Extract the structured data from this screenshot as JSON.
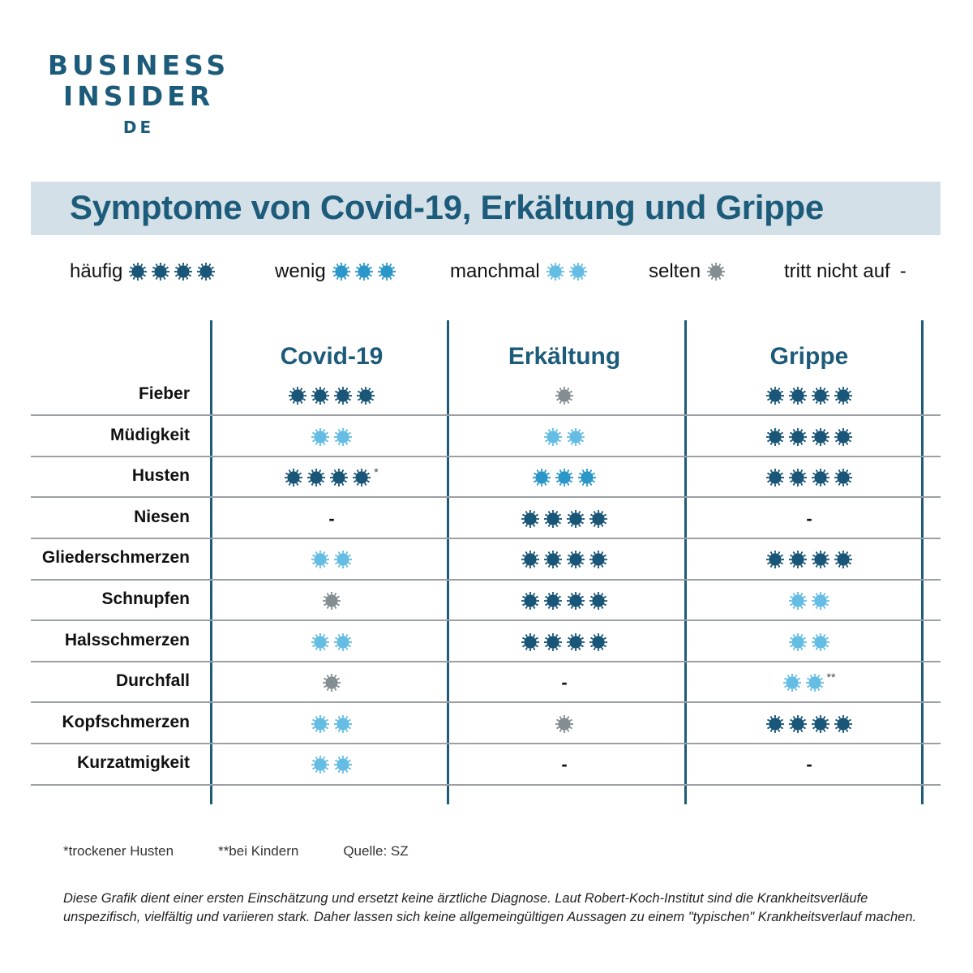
{
  "logo": {
    "line1": "BUSINESS",
    "line2": "INSIDER",
    "line3": "DE"
  },
  "title": "Symptome von Covid-19, Erkältung und Grippe",
  "colors": {
    "haeufig": "#1a5678",
    "wenig": "#2b97c9",
    "manchmal": "#66bde4",
    "selten": "#848e92",
    "accent": "#1d5b7a",
    "title_bg": "#d3e0e8"
  },
  "legend": [
    {
      "label": "häufig",
      "level": "haeufig",
      "count": 4,
      "symbol": ""
    },
    {
      "label": "wenig",
      "level": "wenig",
      "count": 3,
      "symbol": ""
    },
    {
      "label": "manchmal",
      "level": "manchmal",
      "count": 2,
      "symbol": ""
    },
    {
      "label": "selten",
      "level": "selten",
      "count": 1,
      "symbol": ""
    },
    {
      "label": "tritt nicht auf",
      "level": "none",
      "count": 0,
      "symbol": "-"
    }
  ],
  "columns": [
    "Covid-19",
    "Erkältung",
    "Grippe"
  ],
  "rows": [
    {
      "symptom": "Fieber",
      "cells": [
        {
          "level": "haeufig",
          "count": 4,
          "mark": ""
        },
        {
          "level": "selten",
          "count": 1,
          "mark": ""
        },
        {
          "level": "haeufig",
          "count": 4,
          "mark": ""
        }
      ]
    },
    {
      "symptom": "Müdigkeit",
      "cells": [
        {
          "level": "manchmal",
          "count": 2,
          "mark": ""
        },
        {
          "level": "manchmal",
          "count": 2,
          "mark": ""
        },
        {
          "level": "haeufig",
          "count": 4,
          "mark": ""
        }
      ]
    },
    {
      "symptom": "Husten",
      "cells": [
        {
          "level": "haeufig",
          "count": 4,
          "mark": "*"
        },
        {
          "level": "wenig",
          "count": 3,
          "mark": ""
        },
        {
          "level": "haeufig",
          "count": 4,
          "mark": ""
        }
      ]
    },
    {
      "symptom": "Niesen",
      "cells": [
        {
          "level": "none",
          "count": 0,
          "mark": ""
        },
        {
          "level": "haeufig",
          "count": 4,
          "mark": ""
        },
        {
          "level": "none",
          "count": 0,
          "mark": ""
        }
      ]
    },
    {
      "symptom": "Gliederschmerzen",
      "cells": [
        {
          "level": "manchmal",
          "count": 2,
          "mark": ""
        },
        {
          "level": "haeufig",
          "count": 4,
          "mark": ""
        },
        {
          "level": "haeufig",
          "count": 4,
          "mark": ""
        }
      ]
    },
    {
      "symptom": "Schnupfen",
      "cells": [
        {
          "level": "selten",
          "count": 1,
          "mark": ""
        },
        {
          "level": "haeufig",
          "count": 4,
          "mark": ""
        },
        {
          "level": "manchmal",
          "count": 2,
          "mark": ""
        }
      ]
    },
    {
      "symptom": "Halsschmerzen",
      "cells": [
        {
          "level": "manchmal",
          "count": 2,
          "mark": ""
        },
        {
          "level": "haeufig",
          "count": 4,
          "mark": ""
        },
        {
          "level": "manchmal",
          "count": 2,
          "mark": ""
        }
      ]
    },
    {
      "symptom": "Durchfall",
      "cells": [
        {
          "level": "selten",
          "count": 1,
          "mark": ""
        },
        {
          "level": "none",
          "count": 0,
          "mark": ""
        },
        {
          "level": "manchmal",
          "count": 2,
          "mark": "**"
        }
      ]
    },
    {
      "symptom": "Kopfschmerzen",
      "cells": [
        {
          "level": "manchmal",
          "count": 2,
          "mark": ""
        },
        {
          "level": "selten",
          "count": 1,
          "mark": ""
        },
        {
          "level": "haeufig",
          "count": 4,
          "mark": ""
        }
      ]
    },
    {
      "symptom": "Kurzatmigkeit",
      "cells": [
        {
          "level": "manchmal",
          "count": 2,
          "mark": ""
        },
        {
          "level": "none",
          "count": 0,
          "mark": ""
        },
        {
          "level": "none",
          "count": 0,
          "mark": ""
        }
      ]
    }
  ],
  "none_symbol": "-",
  "footnotes": [
    "*trockener Husten",
    "**bei Kindern",
    "Quelle: SZ"
  ],
  "disclaimer": "Diese Grafik dient einer ersten Einschätzung und ersetzt keine ärztliche Diagnose. Laut Robert-Koch-Institut sind die  Krankheitsverläufe unspezifisch, vielfältig und variieren stark. Daher lassen sich keine allgemeingültigen Aussagen zu einem \"typischen\" Krankheitsverlauf machen."
}
